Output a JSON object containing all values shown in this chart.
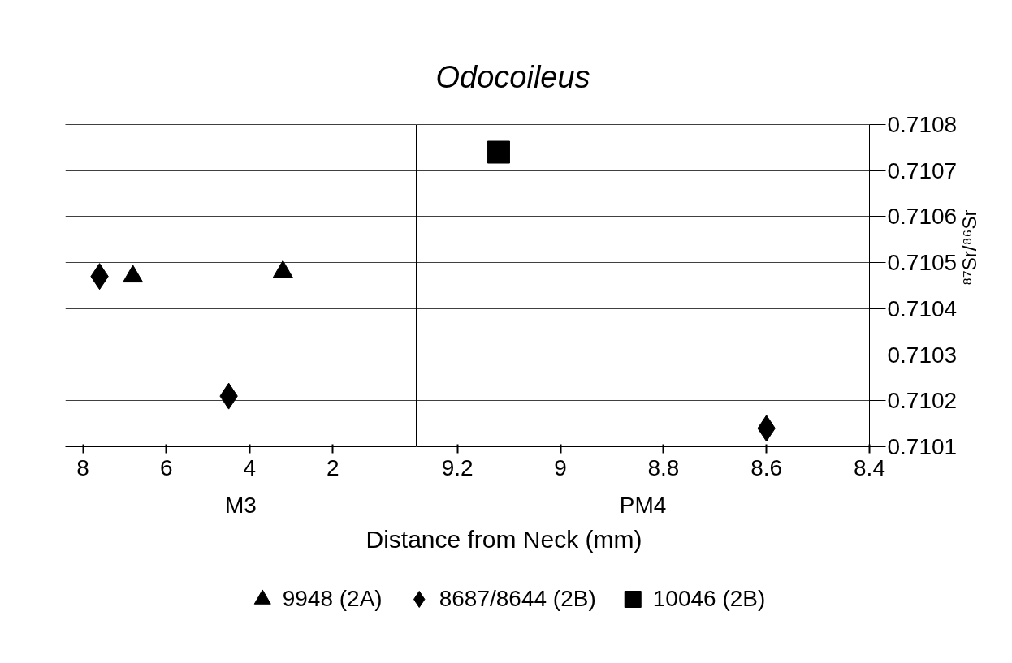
{
  "chart_data": [
    {
      "type": "scatter",
      "xlabel": "M3",
      "annotations": [
        "Distance from Neck (mm)"
      ],
      "xlim": [
        8.42,
        0
      ],
      "xticks": [
        8,
        6,
        4,
        2
      ],
      "ylim": [
        0.7101,
        0.7108
      ],
      "yticks": [
        0.7101,
        0.7102,
        0.7103,
        0.7104,
        0.7105,
        0.7106,
        0.7107,
        0.7108
      ],
      "tick_labels": "x",
      "grid": "y",
      "legend": "bottom",
      "series": [
        {
          "name": "9948 (2A)",
          "color": "#000000",
          "marker": "triangle",
          "x": [
            6.8,
            3.2
          ],
          "values": [
            0.71047,
            0.71048
          ]
        },
        {
          "name": "8687/8644 (2B)",
          "color": "#000000",
          "marker": "diamond",
          "x": [
            7.6,
            4.5
          ],
          "values": [
            0.71047,
            0.71021
          ]
        }
      ]
    },
    {
      "type": "scatter",
      "title": "Odocoileus",
      "xlabel": "PM4",
      "ylabel": "⁸⁷Sr/⁸⁶Sr",
      "xlim": [
        9.28,
        8.4
      ],
      "xticks": [
        9.2,
        9,
        8.8,
        8.6,
        8.4
      ],
      "ylim": [
        0.7101,
        0.7108
      ],
      "yticks": [
        0.7101,
        0.7102,
        0.7103,
        0.7104,
        0.7105,
        0.7106,
        0.7107,
        0.7108
      ],
      "grid": "y",
      "legend": "bottom",
      "series": [
        {
          "color": "#000000",
          "marker": "diamond",
          "x": [
            8.6
          ],
          "values": [
            0.71014
          ]
        },
        {
          "name": "10046 (2B)",
          "color": "#000000",
          "marker": "square",
          "x": [
            9.12
          ],
          "values": [
            0.71074
          ]
        }
      ]
    }
  ]
}
